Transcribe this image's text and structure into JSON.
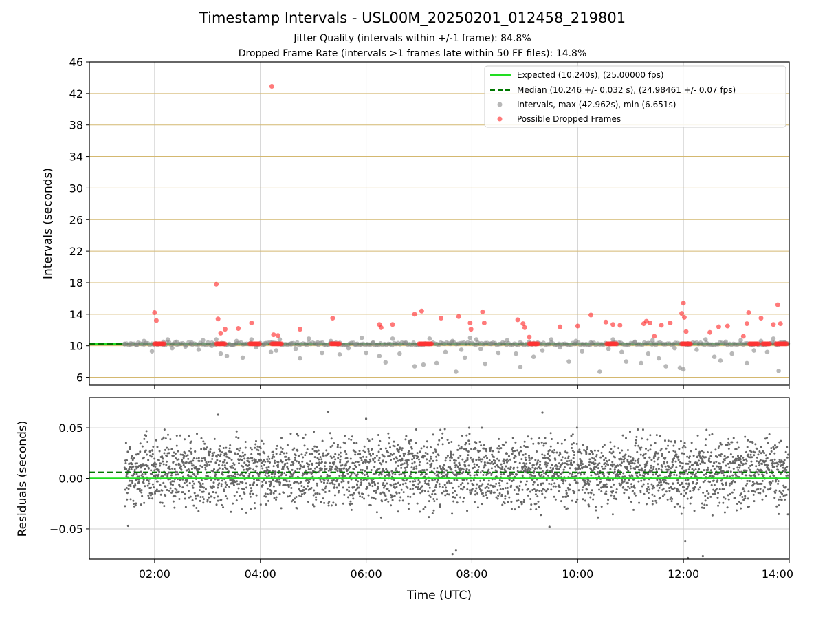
{
  "title": "Timestamp Intervals - USL00M_20250201_012458_219801",
  "subtitle_1": "Jitter Quality (intervals within +/-1 frame): 84.8%",
  "subtitle_2": "Dropped Frame Rate (intervals >1 frames late within 50 FF files): 14.8%",
  "colors": {
    "expected": "#22dd22",
    "median": "#007700",
    "intervals": "#888888",
    "dropped": "#ff3333",
    "hgrid_top": "#d4b870",
    "grid": "#cccccc",
    "residuals": "#666666"
  },
  "chart_data": [
    {
      "type": "scatter",
      "ylabel": "Intervals (seconds)",
      "xlim": [
        "00:46",
        "14:00"
      ],
      "ylim": [
        5,
        46
      ],
      "x_ticks": [
        "02:00",
        "04:00",
        "06:00",
        "08:00",
        "10:00",
        "12:00",
        "14:00"
      ],
      "y_ticks": [
        6,
        10,
        14,
        18,
        22,
        26,
        30,
        34,
        38,
        42,
        46
      ],
      "grid": "on",
      "legend_placement": "top-right",
      "legend": [
        "Expected (10.240s), (25.00000 fps)",
        "Median (10.246 +/- 0.032 s), (24.98461 +/- 0.07 fps)",
        "Intervals, max (42.962s), min (6.651s)",
        "Possible Dropped Frames"
      ],
      "expected_line": 10.24,
      "median_line": 10.246,
      "series": [
        {
          "name": "Intervals, max (42.962s), min (6.651s)",
          "type": "scatter",
          "points": [
            [
              "01:26",
              10.2
            ],
            [
              "01:33",
              10.3
            ],
            [
              "01:40",
              10.1
            ],
            [
              "01:48",
              10.6
            ],
            [
              "01:57",
              9.3
            ],
            [
              "02:10",
              10.5
            ],
            [
              "02:15",
              10.8
            ],
            [
              "02:20",
              9.7
            ],
            [
              "02:25",
              10.5
            ],
            [
              "02:35",
              9.9
            ],
            [
              "02:42",
              10.4
            ],
            [
              "02:50",
              9.5
            ],
            [
              "02:55",
              10.7
            ],
            [
              "03:05",
              10.0
            ],
            [
              "03:10",
              10.8
            ],
            [
              "03:15",
              9.0
            ],
            [
              "03:22",
              8.7
            ],
            [
              "03:28",
              10.1
            ],
            [
              "03:33",
              10.6
            ],
            [
              "03:40",
              8.5
            ],
            [
              "03:50",
              10.8
            ],
            [
              "03:55",
              9.8
            ],
            [
              "04:05",
              10.3
            ],
            [
              "04:12",
              9.2
            ],
            [
              "04:18",
              9.4
            ],
            [
              "04:22",
              10.8
            ],
            [
              "04:35",
              10.2
            ],
            [
              "04:40",
              9.6
            ],
            [
              "04:45",
              8.4
            ],
            [
              "04:55",
              10.9
            ],
            [
              "05:05",
              10.4
            ],
            [
              "05:10",
              9.1
            ],
            [
              "05:20",
              10.6
            ],
            [
              "05:30",
              8.9
            ],
            [
              "05:40",
              9.7
            ],
            [
              "05:48",
              10.2
            ],
            [
              "05:55",
              11.0
            ],
            [
              "06:00",
              9.1
            ],
            [
              "06:08",
              10.4
            ],
            [
              "06:15",
              8.7
            ],
            [
              "06:22",
              7.9
            ],
            [
              "06:30",
              10.9
            ],
            [
              "06:38",
              9.0
            ],
            [
              "06:45",
              10.4
            ],
            [
              "06:55",
              7.4
            ],
            [
              "07:05",
              7.6
            ],
            [
              "07:12",
              10.9
            ],
            [
              "07:20",
              7.8
            ],
            [
              "07:30",
              9.2
            ],
            [
              "07:38",
              10.6
            ],
            [
              "07:42",
              6.7
            ],
            [
              "07:48",
              9.5
            ],
            [
              "07:52",
              8.5
            ],
            [
              "07:58",
              11.0
            ],
            [
              "08:05",
              10.8
            ],
            [
              "08:10",
              9.6
            ],
            [
              "08:15",
              7.7
            ],
            [
              "08:22",
              10.3
            ],
            [
              "08:30",
              9.1
            ],
            [
              "08:40",
              10.7
            ],
            [
              "08:50",
              9.0
            ],
            [
              "08:55",
              7.3
            ],
            [
              "09:05",
              10.5
            ],
            [
              "09:10",
              8.6
            ],
            [
              "09:20",
              9.4
            ],
            [
              "09:30",
              10.8
            ],
            [
              "09:40",
              9.8
            ],
            [
              "09:50",
              8.0
            ],
            [
              "09:58",
              10.6
            ],
            [
              "10:05",
              9.3
            ],
            [
              "10:15",
              10.4
            ],
            [
              "10:25",
              6.7
            ],
            [
              "10:35",
              9.6
            ],
            [
              "10:40",
              10.8
            ],
            [
              "10:50",
              9.2
            ],
            [
              "10:55",
              8.0
            ],
            [
              "11:05",
              10.5
            ],
            [
              "11:12",
              7.8
            ],
            [
              "11:20",
              9.0
            ],
            [
              "11:25",
              10.7
            ],
            [
              "11:32",
              8.4
            ],
            [
              "11:40",
              7.4
            ],
            [
              "11:50",
              9.7
            ],
            [
              "11:56",
              7.2
            ],
            [
              "12:00",
              7.0
            ],
            [
              "12:05",
              10.3
            ],
            [
              "12:15",
              9.5
            ],
            [
              "12:25",
              10.8
            ],
            [
              "12:35",
              8.6
            ],
            [
              "12:42",
              8.1
            ],
            [
              "12:48",
              10.5
            ],
            [
              "12:55",
              9.0
            ],
            [
              "13:05",
              10.7
            ],
            [
              "13:12",
              7.8
            ],
            [
              "13:20",
              9.4
            ],
            [
              "13:28",
              10.6
            ],
            [
              "13:35",
              9.2
            ],
            [
              "13:42",
              10.9
            ],
            [
              "13:48",
              6.8
            ],
            [
              "13:55",
              10.4
            ]
          ]
        },
        {
          "name": "Possible Dropped Frames",
          "type": "scatter",
          "points": [
            [
              "02:00",
              14.2
            ],
            [
              "02:02",
              13.2
            ],
            [
              "03:10",
              17.8
            ],
            [
              "03:12",
              13.4
            ],
            [
              "03:15",
              11.6
            ],
            [
              "03:20",
              12.1
            ],
            [
              "03:35",
              12.2
            ],
            [
              "03:50",
              12.9
            ],
            [
              "04:13",
              42.9
            ],
            [
              "04:15",
              11.4
            ],
            [
              "04:20",
              11.3
            ],
            [
              "04:45",
              12.1
            ],
            [
              "05:22",
              13.5
            ],
            [
              "06:15",
              12.7
            ],
            [
              "06:17",
              12.3
            ],
            [
              "06:30",
              12.7
            ],
            [
              "06:55",
              14.0
            ],
            [
              "07:03",
              14.4
            ],
            [
              "07:25",
              13.5
            ],
            [
              "07:45",
              13.7
            ],
            [
              "07:58",
              12.9
            ],
            [
              "07:59",
              12.1
            ],
            [
              "08:12",
              14.3
            ],
            [
              "08:14",
              12.9
            ],
            [
              "08:52",
              13.3
            ],
            [
              "08:58",
              12.8
            ],
            [
              "09:00",
              12.3
            ],
            [
              "09:05",
              11.1
            ],
            [
              "09:40",
              12.4
            ],
            [
              "10:00",
              12.5
            ],
            [
              "10:15",
              13.9
            ],
            [
              "10:32",
              13.0
            ],
            [
              "10:40",
              12.7
            ],
            [
              "10:48",
              12.6
            ],
            [
              "11:15",
              12.8
            ],
            [
              "11:18",
              13.1
            ],
            [
              "11:22",
              12.9
            ],
            [
              "11:27",
              11.2
            ],
            [
              "11:35",
              12.6
            ],
            [
              "11:45",
              12.9
            ],
            [
              "11:58",
              14.1
            ],
            [
              "12:00",
              15.4
            ],
            [
              "12:01",
              13.6
            ],
            [
              "12:03",
              11.8
            ],
            [
              "12:30",
              11.7
            ],
            [
              "12:40",
              12.4
            ],
            [
              "12:50",
              12.5
            ],
            [
              "13:08",
              11.2
            ],
            [
              "13:12",
              12.8
            ],
            [
              "13:14",
              14.2
            ],
            [
              "13:28",
              13.5
            ],
            [
              "13:42",
              12.7
            ],
            [
              "13:47",
              15.2
            ],
            [
              "13:50",
              12.8
            ]
          ],
          "baseline_clusters": [
            [
              "02:00",
              "02:12"
            ],
            [
              "03:10",
              "03:20"
            ],
            [
              "03:48",
              "04:00"
            ],
            [
              "04:13",
              "04:25"
            ],
            [
              "05:20",
              "05:30"
            ],
            [
              "07:00",
              "07:15"
            ],
            [
              "09:05",
              "09:15"
            ],
            [
              "10:33",
              "10:45"
            ],
            [
              "11:58",
              "12:08"
            ],
            [
              "13:15",
              "13:25"
            ],
            [
              "13:30",
              "13:38"
            ],
            [
              "13:45",
              "13:58"
            ]
          ],
          "baseline_value": 10.25
        }
      ]
    },
    {
      "type": "scatter",
      "xlabel": "Time (UTC)",
      "ylabel": "Residuals (seconds)",
      "xlim": [
        "00:46",
        "14:00"
      ],
      "ylim": [
        -0.08,
        0.08
      ],
      "x_ticks": [
        "02:00",
        "04:00",
        "06:00",
        "08:00",
        "10:00",
        "12:00",
        "14:00"
      ],
      "y_ticks": [
        "−0.05",
        "0.00",
        "0.05"
      ],
      "grid": "on",
      "expected_line": 0.0,
      "median_line": 0.006,
      "series": [
        {
          "name": "Residuals",
          "x_range": [
            "01:26",
            "14:00"
          ],
          "distribution": "dense band centred near +0.006 s",
          "y_band": [
            -0.04,
            0.052
          ],
          "outliers": [
            [
              "01:30",
              -0.047
            ],
            [
              "03:12",
              0.063
            ],
            [
              "07:38",
              -0.075
            ],
            [
              "07:42",
              -0.071
            ],
            [
              "09:20",
              0.065
            ],
            [
              "09:28",
              -0.048
            ],
            [
              "12:02",
              -0.062
            ],
            [
              "12:05",
              -0.079
            ],
            [
              "12:22",
              -0.077
            ],
            [
              "05:17",
              0.066
            ],
            [
              "06:00",
              0.059
            ]
          ]
        }
      ]
    }
  ]
}
